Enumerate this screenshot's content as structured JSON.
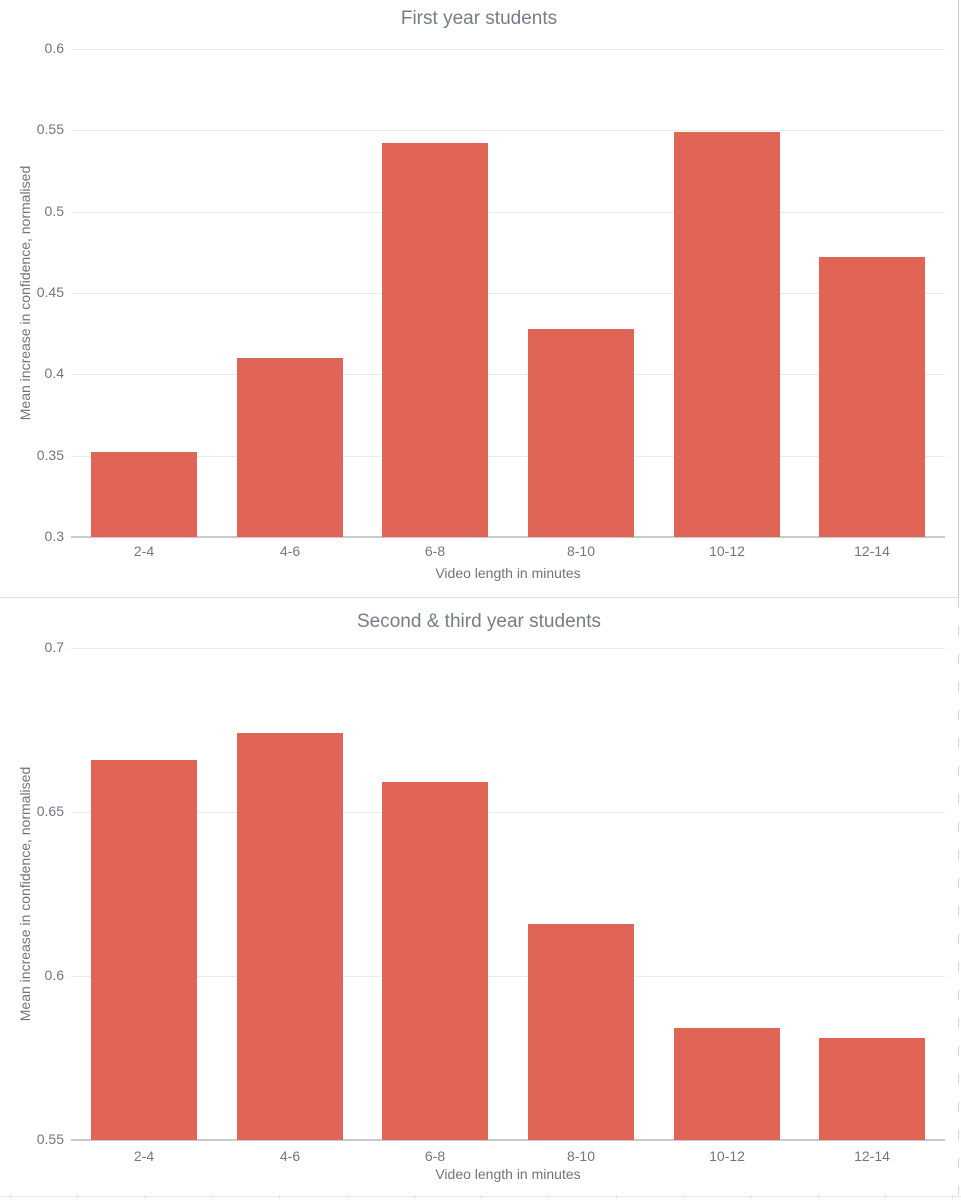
{
  "style": {
    "bar_color": "#e06557",
    "grid_color": "#e9eaec",
    "axis_line_color": "#c8cbcd",
    "tick_label_color": "#72777d",
    "title_color": "#747e88",
    "background": "#ffffff"
  },
  "chart_data": [
    {
      "type": "bar",
      "title": "First year students",
      "categories": [
        "2-4",
        "4-6",
        "6-8",
        "8-10",
        "10-12",
        "12-14"
      ],
      "values": [
        0.352,
        0.41,
        0.542,
        0.428,
        0.549,
        0.472
      ],
      "xlabel": "Video length in minutes",
      "ylabel": "Mean increase in confidence, normalised",
      "ylim": [
        0.3,
        0.6
      ],
      "yticks": [
        0.3,
        0.35,
        0.4,
        0.45,
        0.5,
        0.55,
        0.6
      ],
      "grid": true,
      "legend": false,
      "bar_color": "#e06557"
    },
    {
      "type": "bar",
      "title": "Second & third year students",
      "categories": [
        "2-4",
        "4-6",
        "6-8",
        "8-10",
        "10-12",
        "12-14"
      ],
      "values": [
        0.666,
        0.674,
        0.659,
        0.616,
        0.584,
        0.581
      ],
      "xlabel": "Video length in minutes",
      "ylabel": "Mean increase in confidence, normalised",
      "ylim": [
        0.55,
        0.7
      ],
      "yticks": [
        0.55,
        0.6,
        0.65,
        0.7
      ],
      "grid": true,
      "legend": false,
      "bar_color": "#e06557"
    }
  ]
}
